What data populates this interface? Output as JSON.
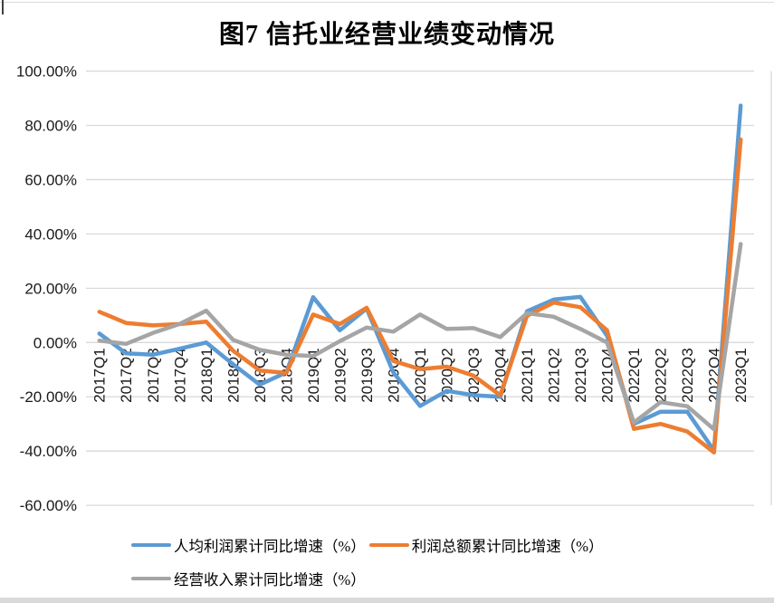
{
  "chart_data": {
    "type": "line",
    "title": "图7 信托业经营业绩变动情况",
    "categories": [
      "2017Q1",
      "2017Q2",
      "2017Q3",
      "2017Q4",
      "2018Q1",
      "2018Q2",
      "2018Q3",
      "2018Q4",
      "2019Q1",
      "2019Q2",
      "2019Q3",
      "2019Q4",
      "2020Q1",
      "2020Q2",
      "2020Q3",
      "2020Q4",
      "2021Q1",
      "2021Q2",
      "2021Q3",
      "2021Q4",
      "2022Q1",
      "2022Q2",
      "2022Q3",
      "2022Q4",
      "2023Q1"
    ],
    "series": [
      {
        "name": "人均利润累计同比增速（%）",
        "color": "#5B9BD5",
        "values": [
          3.3,
          -4.0,
          -4.5,
          -2.3,
          0.0,
          -8.0,
          -15.5,
          -11.0,
          16.7,
          4.5,
          12.5,
          -11.0,
          -23.4,
          -17.8,
          -19.4,
          -20.0,
          11.5,
          15.8,
          16.8,
          2.5,
          -30.0,
          -25.5,
          -25.5,
          -39.8,
          87.3
        ]
      },
      {
        "name": "利润总额累计同比增速（%）",
        "color": "#ED7D31",
        "values": [
          11.3,
          7.2,
          6.3,
          6.8,
          7.7,
          -3.0,
          -10.3,
          -11.2,
          10.3,
          6.8,
          12.8,
          -6.8,
          -9.8,
          -8.9,
          -12.2,
          -19.4,
          9.8,
          14.7,
          13.0,
          4.5,
          -31.8,
          -30.0,
          -32.8,
          -40.5,
          74.8
        ]
      },
      {
        "name": "经营收入累计同比增速（%）",
        "color": "#A5A5A5",
        "values": [
          0.7,
          -0.5,
          3.5,
          6.8,
          11.7,
          1.0,
          -2.7,
          -4.5,
          -5.0,
          0.5,
          5.5,
          4.0,
          10.3,
          5.0,
          5.3,
          2.0,
          10.8,
          9.5,
          5.0,
          0.0,
          -29.5,
          -22.0,
          -23.5,
          -32.0,
          36.3
        ]
      }
    ],
    "ylim": [
      -60,
      100
    ],
    "ytick_step": 20,
    "yticklabels": [
      "100.00%",
      "80.00%",
      "60.00%",
      "40.00%",
      "20.00%",
      "0.00%",
      "-20.00%",
      "-40.00%",
      "-60.00%"
    ],
    "grid": true,
    "legend_position": "bottom",
    "gridline_color": "#D9D9D9",
    "text_color": "#1a1a1a"
  }
}
